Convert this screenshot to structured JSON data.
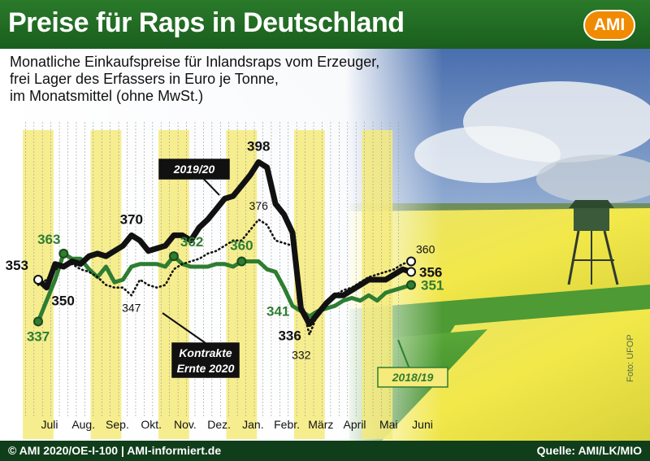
{
  "header": {
    "title": "Preise für Raps in Deutschland",
    "logo": "AMI"
  },
  "subtitle_lines": [
    "Monatliche Einkaufspreise für Inlandsraps vom Erzeuger,",
    "frei Lager des Erfassers in Euro je Tonne,",
    "im Monatsmittel (ohne MwSt.)"
  ],
  "footer": {
    "left": "© AMI 2020/OE-I-100 | AMI-informiert.de",
    "right": "Quelle: AMI/LK/MIO"
  },
  "photo_credit": "Foto: UFOP",
  "colors": {
    "black": "#111111",
    "green": "#2e7d32",
    "header": "#1f6b23",
    "highlight": "#f5ea7a",
    "logo": "#f08a00"
  },
  "chart_data": {
    "type": "line",
    "x_months": [
      "Juli",
      "Aug.",
      "Sep.",
      "Okt.",
      "Nov.",
      "Dez.",
      "Jan.",
      "Febr.",
      "März",
      "April",
      "Mai",
      "Juni"
    ],
    "highlighted_months": [
      "Juli",
      "Sep.",
      "Nov.",
      "Jan.",
      "März",
      "Mai"
    ],
    "ylim": [
      325,
      400
    ],
    "series": [
      {
        "name": "2019/20",
        "style": "thick-black",
        "x": [
          0,
          0.25,
          0.5,
          0.75,
          1,
          1.25,
          1.5,
          1.75,
          2,
          2.25,
          2.5,
          2.75,
          3,
          3.25,
          3.5,
          3.75,
          4,
          4.25,
          4.5,
          4.75,
          5,
          5.25,
          5.5,
          5.75,
          6,
          6.25,
          6.5,
          6.75,
          7,
          7.25,
          7.5,
          7.75,
          8,
          8.25,
          8.5,
          8.75,
          9,
          9.25,
          9.5,
          9.75,
          10,
          10.25,
          10.5,
          10.75,
          11
        ],
        "values": [
          353,
          350,
          359,
          358,
          360,
          359,
          362,
          363,
          362,
          364,
          366,
          370,
          368,
          364,
          365,
          366,
          370,
          370,
          368,
          373,
          376,
          380,
          384,
          385,
          389,
          393,
          398,
          396,
          382,
          378,
          371,
          342,
          336,
          340,
          344,
          347,
          347,
          349,
          351,
          353,
          353,
          353,
          355,
          357,
          356
        ]
      },
      {
        "name": "Kontrakte Ernte 2020",
        "style": "black-dotted",
        "x": [
          0,
          0.25,
          0.5,
          0.75,
          1,
          1.25,
          1.5,
          1.75,
          2,
          2.25,
          2.5,
          2.75,
          3,
          3.25,
          3.5,
          3.75,
          4,
          4.25,
          4.5,
          4.75,
          5,
          5.25,
          5.5,
          5.75,
          6,
          6.25,
          6.5,
          6.75,
          7,
          7.25,
          7.5,
          7.75,
          8,
          8.25,
          8.5,
          8.75,
          9,
          9.25,
          9.5,
          9.75,
          10,
          10.25,
          10.5,
          10.75,
          11
        ],
        "values": [
          351,
          353,
          357,
          358,
          359,
          357,
          356,
          354,
          351,
          350,
          350,
          347,
          353,
          351,
          350,
          351,
          357,
          359,
          360,
          361,
          363,
          364,
          366,
          368,
          368,
          372,
          376,
          374,
          368,
          367,
          366,
          345,
          332,
          340,
          345,
          347,
          349,
          350,
          352,
          354,
          355,
          356,
          357,
          359,
          360
        ]
      },
      {
        "name": "2018/19",
        "style": "green",
        "x": [
          0,
          0.25,
          0.5,
          0.75,
          1,
          1.25,
          1.5,
          1.75,
          2,
          2.25,
          2.5,
          2.75,
          3,
          3.25,
          3.5,
          3.75,
          4,
          4.25,
          4.5,
          4.75,
          5,
          5.25,
          5.5,
          5.75,
          6,
          6.25,
          6.5,
          6.75,
          7,
          7.25,
          7.5,
          7.75,
          8,
          8.25,
          8.5,
          8.75,
          9,
          9.25,
          9.5,
          9.75,
          10,
          10.25,
          10.5,
          10.75,
          11
        ],
        "values": [
          337,
          345,
          353,
          363,
          361,
          361,
          357,
          354,
          358,
          352,
          353,
          358,
          359,
          359,
          359,
          358,
          362,
          359,
          358,
          358,
          358,
          359,
          359,
          358,
          360,
          360,
          360,
          357,
          356,
          350,
          343,
          341,
          339,
          341,
          342,
          343,
          345,
          346,
          345,
          347,
          345,
          348,
          349,
          350,
          351
        ]
      }
    ],
    "annotations": [
      {
        "series": 0,
        "index": 0,
        "label": "353"
      },
      {
        "series": 0,
        "index": 1,
        "label": "350"
      },
      {
        "series": 0,
        "index": 11,
        "label": "370"
      },
      {
        "series": 0,
        "index": 26,
        "label": "398"
      },
      {
        "series": 0,
        "index": 32,
        "label": "336"
      },
      {
        "series": 0,
        "index": 44,
        "label": "356"
      },
      {
        "series": 1,
        "index": 11,
        "label": "347"
      },
      {
        "series": 1,
        "index": 26,
        "label": "376"
      },
      {
        "series": 1,
        "index": 32,
        "label": "332"
      },
      {
        "series": 1,
        "index": 44,
        "label": "360"
      },
      {
        "series": 2,
        "index": 0,
        "label": "337"
      },
      {
        "series": 2,
        "index": 3,
        "label": "363"
      },
      {
        "series": 2,
        "index": 16,
        "label": "362"
      },
      {
        "series": 2,
        "index": 24,
        "label": "360"
      },
      {
        "series": 2,
        "index": 31,
        "label": "341"
      },
      {
        "series": 2,
        "index": 44,
        "label": "351"
      }
    ],
    "legend_labels": [
      {
        "series": 0,
        "lines": [
          "2019/20"
        ]
      },
      {
        "series": 1,
        "lines": [
          "Kontrakte",
          "Ernte 2020"
        ]
      },
      {
        "series": 2,
        "lines": [
          "2018/19"
        ]
      }
    ]
  }
}
